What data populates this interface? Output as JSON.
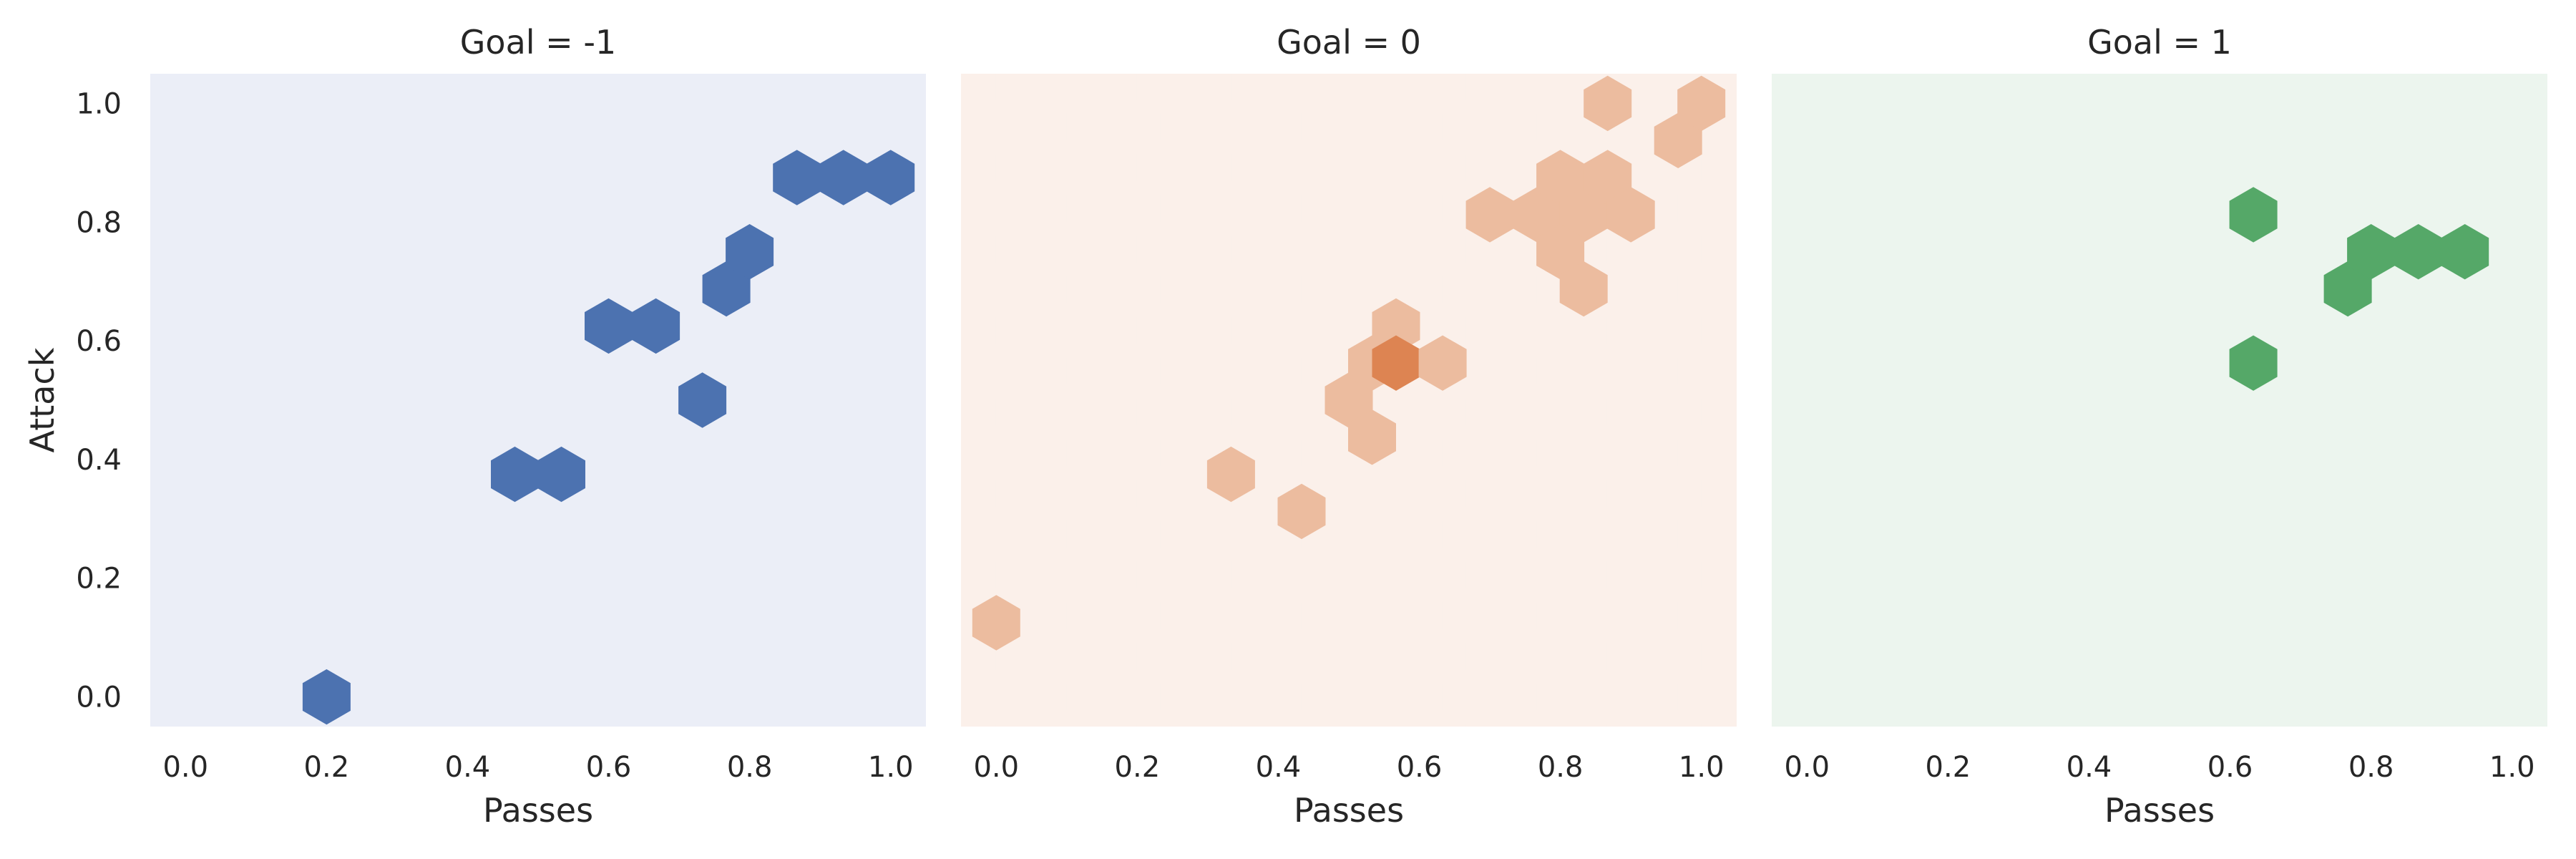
{
  "chart_data": [
    {
      "type": "hexbin",
      "title": "Goal = -1",
      "xlabel": "Passes",
      "ylabel": "Attack",
      "xlim": [
        -0.05,
        1.05
      ],
      "ylim": [
        -0.05,
        1.05
      ],
      "xticks": [
        "0.0",
        "0.2",
        "0.4",
        "0.6",
        "0.8",
        "1.0"
      ],
      "yticks": [
        "0.0",
        "0.2",
        "0.4",
        "0.6",
        "0.8",
        "1.0"
      ],
      "grid": false,
      "colors": {
        "background": "#eaeaf2",
        "empty_fill": "#ebeef7",
        "low": "#4c72b0",
        "high": "#4c72b0"
      },
      "bins": [
        {
          "x": 0.2,
          "y": 0.0,
          "count": 1
        },
        {
          "x": 0.467,
          "y": 0.375,
          "count": 1
        },
        {
          "x": 0.533,
          "y": 0.375,
          "count": 1
        },
        {
          "x": 0.6,
          "y": 0.625,
          "count": 1
        },
        {
          "x": 0.667,
          "y": 0.625,
          "count": 1
        },
        {
          "x": 0.733,
          "y": 0.5,
          "count": 1
        },
        {
          "x": 0.767,
          "y": 0.6875,
          "count": 1
        },
        {
          "x": 0.8,
          "y": 0.75,
          "count": 1
        },
        {
          "x": 0.867,
          "y": 0.875,
          "count": 1
        },
        {
          "x": 0.933,
          "y": 0.875,
          "count": 1
        },
        {
          "x": 1.0,
          "y": 0.875,
          "count": 1
        }
      ]
    },
    {
      "type": "hexbin",
      "title": "Goal = 0",
      "xlabel": "Passes",
      "ylabel": "",
      "xlim": [
        -0.05,
        1.05
      ],
      "ylim": [
        -0.05,
        1.05
      ],
      "xticks": [
        "0.0",
        "0.2",
        "0.4",
        "0.6",
        "0.8",
        "1.0"
      ],
      "yticks": [],
      "grid": false,
      "colors": {
        "background": "#eaeaf2",
        "empty_fill": "#fbf0ea",
        "low": "#ecbc9f",
        "high": "#dd8452"
      },
      "bins": [
        {
          "x": 0.0,
          "y": 0.125,
          "count": 1
        },
        {
          "x": 0.333,
          "y": 0.375,
          "count": 1
        },
        {
          "x": 0.433,
          "y": 0.3125,
          "count": 1
        },
        {
          "x": 0.5,
          "y": 0.5,
          "count": 1
        },
        {
          "x": 0.533,
          "y": 0.4375,
          "count": 1
        },
        {
          "x": 0.533,
          "y": 0.5625,
          "count": 1
        },
        {
          "x": 0.567,
          "y": 0.625,
          "count": 1
        },
        {
          "x": 0.567,
          "y": 0.5625,
          "count": 3
        },
        {
          "x": 0.633,
          "y": 0.5625,
          "count": 1
        },
        {
          "x": 0.7,
          "y": 0.8125,
          "count": 1
        },
        {
          "x": 0.767,
          "y": 0.8125,
          "count": 1
        },
        {
          "x": 0.8,
          "y": 0.875,
          "count": 1
        },
        {
          "x": 0.833,
          "y": 0.8125,
          "count": 1
        },
        {
          "x": 0.8,
          "y": 0.75,
          "count": 1
        },
        {
          "x": 0.833,
          "y": 0.6875,
          "count": 1
        },
        {
          "x": 0.867,
          "y": 0.875,
          "count": 1
        },
        {
          "x": 0.9,
          "y": 0.8125,
          "count": 1
        },
        {
          "x": 0.867,
          "y": 1.0,
          "count": 1
        },
        {
          "x": 0.967,
          "y": 0.9375,
          "count": 1
        },
        {
          "x": 1.0,
          "y": 1.0,
          "count": 1
        }
      ]
    },
    {
      "type": "hexbin",
      "title": "Goal = 1",
      "xlabel": "Passes",
      "ylabel": "",
      "xlim": [
        -0.05,
        1.05
      ],
      "ylim": [
        -0.05,
        1.05
      ],
      "xticks": [
        "0.0",
        "0.2",
        "0.4",
        "0.6",
        "0.8",
        "1.0"
      ],
      "yticks": [],
      "grid": false,
      "colors": {
        "background": "#eaeaf2",
        "empty_fill": "#ecf5ee",
        "low": "#55a868",
        "high": "#55a868"
      },
      "bins": [
        {
          "x": 0.633,
          "y": 0.8125,
          "count": 1
        },
        {
          "x": 0.633,
          "y": 0.5625,
          "count": 1
        },
        {
          "x": 0.767,
          "y": 0.6875,
          "count": 1
        },
        {
          "x": 0.8,
          "y": 0.75,
          "count": 1
        },
        {
          "x": 0.867,
          "y": 0.75,
          "count": 1
        },
        {
          "x": 0.933,
          "y": 0.75,
          "count": 1
        }
      ]
    }
  ]
}
